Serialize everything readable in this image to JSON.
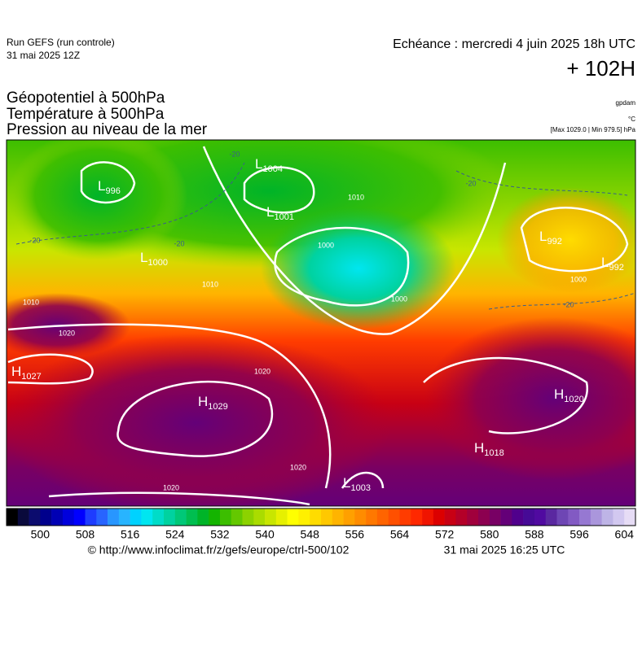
{
  "header": {
    "run": "Run GEFS (run controle)",
    "run_date": "31 mai 2025 12Z",
    "valid": "Echéance : mercredi 4 juin 2025 18h UTC",
    "lead": "+ 102H",
    "fields": [
      "Géopotentiel à 500hPa",
      "Température à 500hPa",
      "Pression au niveau de la mer"
    ],
    "units": [
      "gpdam",
      "°C"
    ],
    "extremes": "[Max 1029.0 | Min 979.5] hPa"
  },
  "centers": [
    {
      "letter": "L",
      "value": 996
    },
    {
      "letter": "L",
      "value": 1004
    },
    {
      "letter": "L",
      "value": 1001
    },
    {
      "letter": "L",
      "value": 1000
    },
    {
      "letter": "L",
      "value": 992
    },
    {
      "letter": "L",
      "value": 992
    },
    {
      "letter": "H",
      "value": 1027
    },
    {
      "letter": "H",
      "value": 1029
    },
    {
      "letter": "H",
      "value": 1020
    },
    {
      "letter": "H",
      "value": 1018
    },
    {
      "letter": "L",
      "value": 1003
    }
  ],
  "contour_labels": [
    1010,
    1000,
    1000,
    1000,
    1010,
    1020,
    1020,
    1020,
    1020,
    -20,
    -20,
    -20,
    -20,
    -20,
    1010
  ],
  "colorbar": {
    "range": [
      494,
      606
    ],
    "ticks": [
      500,
      508,
      516,
      524,
      532,
      540,
      548,
      556,
      564,
      572,
      580,
      588,
      596,
      604
    ],
    "colors": [
      "#000000",
      "#0a0a3c",
      "#0c0c6e",
      "#00008c",
      "#0000b4",
      "#0000dc",
      "#0000ff",
      "#1e3cff",
      "#2864ff",
      "#2896ff",
      "#28b4ff",
      "#00d2ff",
      "#00e6f0",
      "#00dcc8",
      "#00d2a0",
      "#00c878",
      "#00be50",
      "#00b428",
      "#14b400",
      "#3cbe00",
      "#64c800",
      "#8cd200",
      "#aadc00",
      "#c8e600",
      "#e6f000",
      "#ffff00",
      "#fff000",
      "#ffdc00",
      "#ffc800",
      "#ffb400",
      "#ffa000",
      "#ff8c00",
      "#ff7800",
      "#ff6400",
      "#ff5000",
      "#ff3c00",
      "#ff2800",
      "#f01400",
      "#dc0000",
      "#c80014",
      "#b40028",
      "#a0003c",
      "#8c0050",
      "#780064",
      "#640078",
      "#50008c",
      "#460a96",
      "#500aa0",
      "#5a28a0",
      "#6e46b4",
      "#825ac3",
      "#9678d2",
      "#aa96dc",
      "#beb4e6",
      "#d2c8f0",
      "#e6dcf5"
    ]
  },
  "footer": {
    "url": "© http://www.infoclimat.fr/z/gefs/europe/ctrl-500/102",
    "issued": "31 mai 2025 16:25 UTC"
  }
}
